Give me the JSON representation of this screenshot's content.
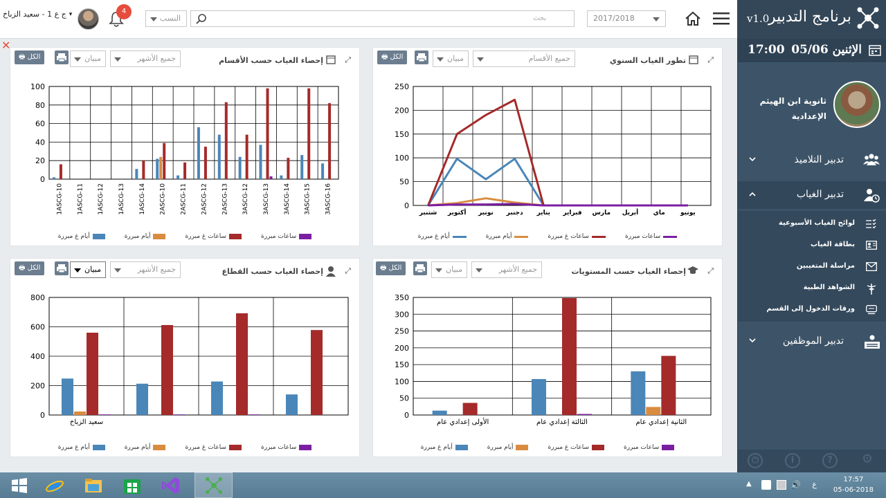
{
  "topbar": {
    "user_name": "ج ع 1 - سعيد الزباخ",
    "notifications_count": "4",
    "filter_placeholder": "النسب",
    "search_placeholder": "بحث",
    "year": "2017/2018"
  },
  "sidebar": {
    "app_title": "برنامج التدبير",
    "version": "v1.0",
    "date": "الإثنين 05/06",
    "time": "17:00",
    "school_name": "ثانوية ابن الهيثم الإعدادية",
    "nav": [
      {
        "label": "تدبير التلاميذ"
      },
      {
        "label": "تدبير الغياب"
      },
      {
        "label": "تدبير الموظفين"
      }
    ],
    "subitems": [
      {
        "label": "لوائح الغياب الأسبوعية"
      },
      {
        "label": "بطاقة الغياب"
      },
      {
        "label": "مراسلة المتغيبين"
      },
      {
        "label": "الشواهد الطبية"
      },
      {
        "label": "ورقات الدخول إلى القسم"
      }
    ]
  },
  "common": {
    "all_label": "الكل",
    "view_label": "مبيان",
    "months_placeholder": "جميع الأشهر",
    "sections_placeholder": "جميع الأقسام"
  },
  "panels": {
    "p1": {
      "title": "تطور الغياب السنوي"
    },
    "p2": {
      "title": "إحصاء الغياب حسب الأقسام"
    },
    "p3": {
      "title": "إحصاء الغياب حسب المستويات"
    },
    "p4": {
      "title": "إحصاء الغياب حسب القطاع"
    }
  },
  "colors": {
    "justified_days": "#4a86b8",
    "days": "#d98c3f",
    "unjustified_hours": "#a52a2a",
    "justified_hours": "#7b1fa2"
  },
  "legend": {
    "justified_hours": "ساعات مبررة",
    "unjustified_hours": "ساعات غ مبررة",
    "justified_days": "أيام مبررة",
    "unjustified_days": "أيام غ مبررة"
  },
  "chart_data": [
    {
      "type": "line",
      "categories": [
        "شتنبر",
        "أكتوبر",
        "نونبر",
        "دجنبر",
        "يناير",
        "فبراير",
        "مارس",
        "أبريل",
        "ماي",
        "يونيو"
      ],
      "ylim": [
        0,
        250
      ],
      "yticks": [
        0,
        50,
        100,
        150,
        200,
        250
      ],
      "series": [
        {
          "name": "ساعات مبررة",
          "color": "#7b1fa2",
          "values": [
            0,
            2,
            2,
            3,
            0,
            0,
            0,
            0,
            0,
            0
          ]
        },
        {
          "name": "ساعات غ مبررة",
          "color": "#a52a2a",
          "values": [
            0,
            150,
            190,
            222,
            0,
            0,
            0,
            0,
            0,
            0
          ]
        },
        {
          "name": "أيام مبررة",
          "color": "#d98c3f",
          "values": [
            0,
            5,
            15,
            6,
            0,
            0,
            0,
            0,
            0,
            0
          ]
        },
        {
          "name": "أيام غ مبررة",
          "color": "#4a86b8",
          "values": [
            0,
            98,
            55,
            98,
            0,
            0,
            0,
            0,
            0,
            0
          ]
        }
      ]
    },
    {
      "type": "bar",
      "categories": [
        "1ASCG-10",
        "1ASCG-11",
        "1ASCG-12",
        "1ASCG-13",
        "1ASCG-14",
        "2ASCG-10",
        "2ASCG-11",
        "2ASCG-12",
        "2ASCG-13",
        "3ASCG-12",
        "3ASCG-13",
        "3ASCG-14",
        "3ASCG-15",
        "3ASCG-16"
      ],
      "ylim": [
        0,
        100
      ],
      "yticks": [
        0,
        20,
        40,
        60,
        80,
        100
      ],
      "series": [
        {
          "name": "أيام غ مبررة",
          "color": "#4a86b8",
          "values": [
            2,
            0,
            0,
            0,
            11,
            22,
            4,
            56,
            48,
            24,
            37,
            4,
            26,
            17
          ]
        },
        {
          "name": "أيام مبررة",
          "color": "#d98c3f",
          "values": [
            0,
            0,
            0,
            0,
            0,
            24,
            0,
            0,
            0,
            0,
            0,
            0,
            0,
            0
          ]
        },
        {
          "name": "ساعات غ مبررة",
          "color": "#a52a2a",
          "values": [
            16,
            0,
            0,
            0,
            20,
            39,
            18,
            35,
            83,
            48,
            98,
            23,
            98,
            82
          ]
        },
        {
          "name": "ساعات مبررة",
          "color": "#7b1fa2",
          "values": [
            0,
            0,
            0,
            0,
            0,
            0,
            0,
            0,
            0,
            0,
            3,
            0,
            0,
            0
          ]
        }
      ]
    },
    {
      "type": "bar",
      "categories": [
        "الأولى إعدادي عام",
        "الثالثة إعدادي عام",
        "الثانية إعدادي عام"
      ],
      "ylim": [
        0,
        350
      ],
      "yticks": [
        0,
        50,
        100,
        150,
        200,
        250,
        300,
        350
      ],
      "series": [
        {
          "name": "أيام غ مبررة",
          "color": "#4a86b8",
          "values": [
            13,
            107,
            130
          ]
        },
        {
          "name": "أيام مبررة",
          "color": "#d98c3f",
          "values": [
            0,
            0,
            24
          ]
        },
        {
          "name": "ساعات غ مبررة",
          "color": "#a52a2a",
          "values": [
            36,
            348,
            176
          ]
        },
        {
          "name": "ساعات مبررة",
          "color": "#7b1fa2",
          "values": [
            0,
            3,
            0
          ]
        }
      ]
    },
    {
      "type": "bar",
      "categories": [
        "سعيد الزباخ",
        "",
        "",
        ""
      ],
      "ylim": [
        0,
        800
      ],
      "yticks": [
        0,
        200,
        400,
        600,
        800
      ],
      "series": [
        {
          "name": "أيام غ مبررة",
          "color": "#4a86b8",
          "values": [
            248,
            213,
            228,
            140
          ]
        },
        {
          "name": "أيام مبررة",
          "color": "#d98c3f",
          "values": [
            24,
            0,
            0,
            0
          ]
        },
        {
          "name": "ساعات غ مبررة",
          "color": "#a52a2a",
          "values": [
            560,
            612,
            692,
            578
          ]
        },
        {
          "name": "ساعات مبررة",
          "color": "#7b1fa2",
          "values": [
            4,
            4,
            4,
            0
          ]
        }
      ]
    }
  ],
  "taskbar": {
    "time": "17:57",
    "date": "05-06-2018",
    "lang": "ع"
  }
}
